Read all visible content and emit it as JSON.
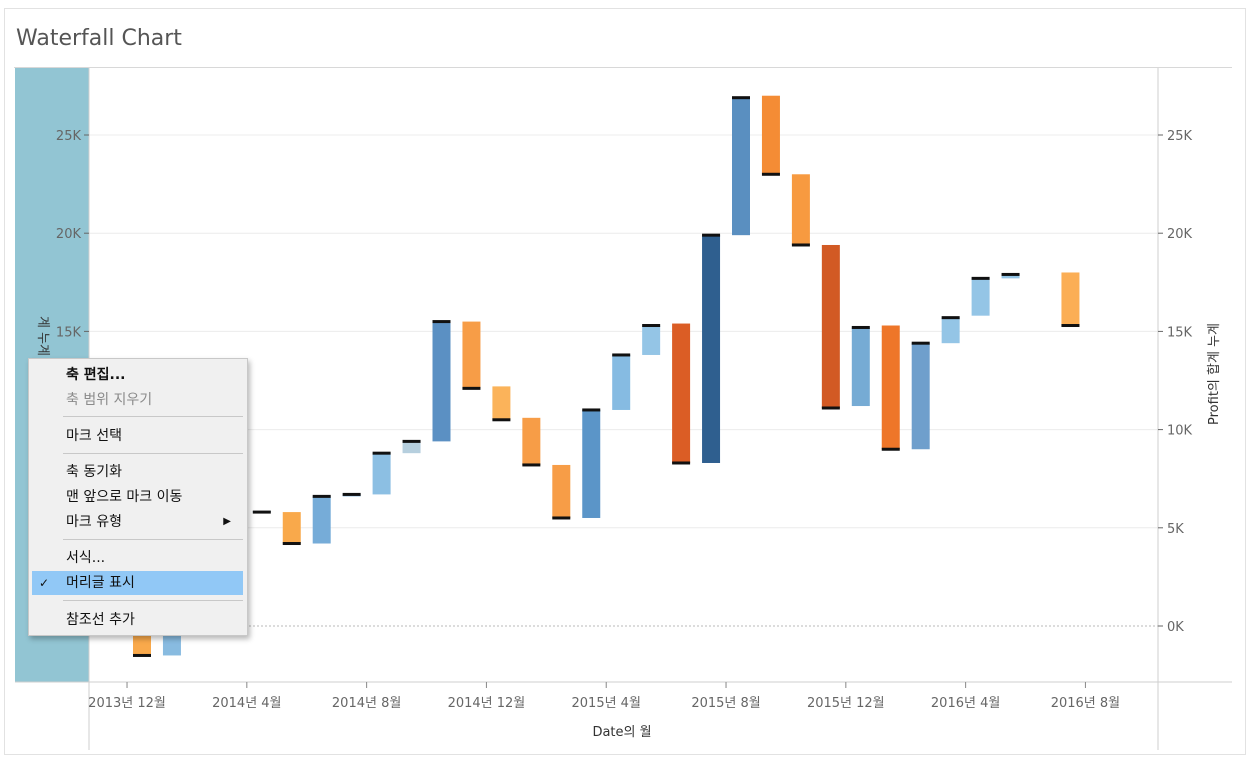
{
  "chart_data": {
    "type": "waterfall",
    "title": "Waterfall Chart",
    "xlabel": "Date의 월",
    "ylabel_right": "Profit의 합계 누계",
    "ylabel_left_fragment": "계 누계",
    "ylim": [
      -3000,
      27900
    ],
    "y_ticks": [
      0,
      5000,
      10000,
      15000,
      20000,
      25000
    ],
    "y_tick_labels": [
      "0K",
      "5K",
      "10K",
      "15K",
      "20K",
      "25K"
    ],
    "left_y_tick_labels": [
      "15K",
      "20K",
      "25K"
    ],
    "x_tick_labels": [
      "2013년 12월",
      "2014년 4월",
      "2014년 8월",
      "2014년 12월",
      "2015년 4월",
      "2015년 8월",
      "2015년 12월",
      "2016년 4월",
      "2016년 8월"
    ],
    "x_tick_positions": [
      -0.5,
      3.5,
      7.5,
      11.5,
      15.5,
      19.5,
      23.5,
      27.5,
      31.5
    ],
    "bars": [
      {
        "start": 0,
        "end": -1500,
        "color": "#f9a94b"
      },
      {
        "start": -1500,
        "end": 0,
        "color": "#88bbe0"
      },
      {
        "start": 1200,
        "end": 3800,
        "color": "#7fb1d9"
      },
      {
        "start": 3900,
        "end": 5900,
        "color": "#76acd8"
      },
      {
        "start": 5850,
        "end": 5800,
        "color": "#76acd8"
      },
      {
        "start": 5800,
        "end": 4200,
        "color": "#f9a94b"
      },
      {
        "start": 4200,
        "end": 6600,
        "color": "#76acd8"
      },
      {
        "start": 6600,
        "end": 6700,
        "color": "#76acd8"
      },
      {
        "start": 6700,
        "end": 8800,
        "color": "#8cbfe3"
      },
      {
        "start": 8800,
        "end": 9400,
        "color": "#b6cfde"
      },
      {
        "start": 9400,
        "end": 15500,
        "color": "#5b90c3"
      },
      {
        "start": 15500,
        "end": 12100,
        "color": "#f79d47"
      },
      {
        "start": 12200,
        "end": 10500,
        "color": "#fbb35a"
      },
      {
        "start": 10600,
        "end": 8200,
        "color": "#f79d47"
      },
      {
        "start": 8200,
        "end": 5500,
        "color": "#f79d47"
      },
      {
        "start": 5500,
        "end": 11000,
        "color": "#5b95c8"
      },
      {
        "start": 11000,
        "end": 13800,
        "color": "#86bbe2"
      },
      {
        "start": 13800,
        "end": 15300,
        "color": "#94c5e6"
      },
      {
        "start": 15400,
        "end": 8300,
        "color": "#db5d25"
      },
      {
        "start": 8300,
        "end": 19900,
        "color": "#2f5f8f"
      },
      {
        "start": 19900,
        "end": 26900,
        "color": "#5a8fc0"
      },
      {
        "start": 27000,
        "end": 23000,
        "color": "#f48c35"
      },
      {
        "start": 23000,
        "end": 19400,
        "color": "#f79a40"
      },
      {
        "start": 19400,
        "end": 11100,
        "color": "#d25a24"
      },
      {
        "start": 11200,
        "end": 15200,
        "color": "#76abd4"
      },
      {
        "start": 15300,
        "end": 9000,
        "color": "#ee7629"
      },
      {
        "start": 9000,
        "end": 14400,
        "color": "#6f9fcc"
      },
      {
        "start": 14400,
        "end": 15700,
        "color": "#94c5e6"
      },
      {
        "start": 15800,
        "end": 17700,
        "color": "#94c5e6"
      },
      {
        "start": 17700,
        "end": 17900,
        "color": "#94c5e6"
      },
      {
        "start": 18000,
        "end": 15300,
        "color": "#fbae55"
      }
    ],
    "bar_x_indices": [
      0,
      1,
      2,
      3,
      4,
      5,
      6,
      7,
      8,
      9,
      10,
      11,
      12,
      13,
      14,
      15,
      16,
      17,
      18,
      19,
      20,
      21,
      22,
      23,
      24,
      25,
      26,
      27,
      28,
      29,
      31
    ],
    "gridlines": true,
    "zero_line": "dashed"
  },
  "context_menu": {
    "items": [
      {
        "label": "축 편집...",
        "bold": true
      },
      {
        "label": "축 범위 지우기",
        "disabled": true
      },
      {
        "label": "마크 선택"
      },
      {
        "label": "축 동기화"
      },
      {
        "label": "맨 앞으로 마크 이동"
      },
      {
        "label": "마크 유형",
        "submenu_arrow": "▶"
      },
      {
        "label": "서식..."
      },
      {
        "label": "머리글 표시",
        "checked": true,
        "check_mark": "✓"
      },
      {
        "label": "참조선 추가"
      }
    ]
  },
  "colors": {
    "left_axis_highlight": "#92c5d3",
    "grid": "#ececec",
    "menu_selected": "#91c8f6"
  }
}
